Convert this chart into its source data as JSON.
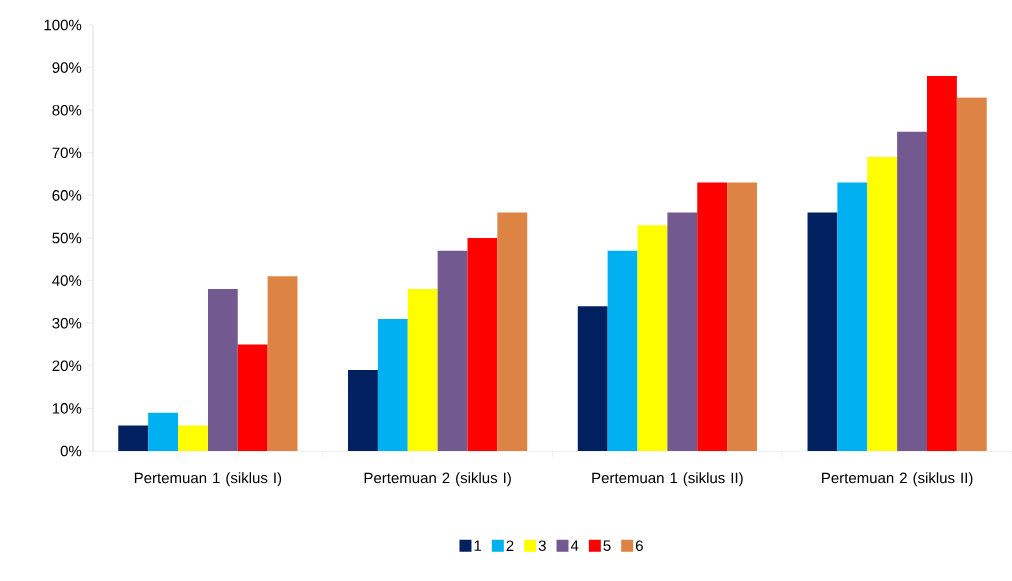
{
  "chart_data": {
    "type": "bar",
    "categories": [
      "Pertemuan 1 (siklus I)",
      "Pertemuan 2 (siklus I)",
      "Pertemuan 1 (siklus II)",
      "Pertemuan 2 (siklus II)"
    ],
    "series": [
      {
        "name": "1",
        "color": "#002060",
        "values": [
          6,
          19,
          34,
          56
        ]
      },
      {
        "name": "2",
        "color": "#00b0f0",
        "values": [
          9,
          31,
          47,
          63
        ]
      },
      {
        "name": "3",
        "color": "#ffff00",
        "values": [
          6,
          38,
          53,
          69
        ]
      },
      {
        "name": "4",
        "color": "#725a91",
        "values": [
          38,
          47,
          56,
          75
        ]
      },
      {
        "name": "5",
        "color": "#ff0000",
        "values": [
          25,
          50,
          63,
          88
        ]
      },
      {
        "name": "6",
        "color": "#dd8444",
        "values": [
          41,
          56,
          63,
          83
        ]
      }
    ],
    "ylim": [
      0,
      100
    ],
    "yticks": [
      {
        "value": 0,
        "label": "0%"
      },
      {
        "value": 10,
        "label": "10%"
      },
      {
        "value": 20,
        "label": "20%"
      },
      {
        "value": 30,
        "label": "30%"
      },
      {
        "value": 40,
        "label": "40%"
      },
      {
        "value": 50,
        "label": "50%"
      },
      {
        "value": 60,
        "label": "60%"
      },
      {
        "value": 70,
        "label": "70%"
      },
      {
        "value": 80,
        "label": "80%"
      },
      {
        "value": 90,
        "label": "90%"
      },
      {
        "value": 100,
        "label": "100%"
      }
    ],
    "legend": "bottom"
  }
}
